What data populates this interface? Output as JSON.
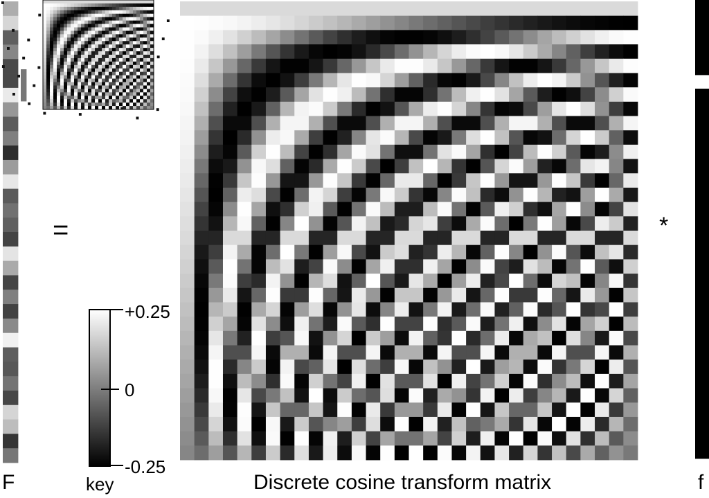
{
  "equation": {
    "left_label": "F",
    "equals": "=",
    "times": "*",
    "right_label": "f"
  },
  "matrix": {
    "title": "Discrete cosine transform matrix",
    "size": 32
  },
  "colorbar": {
    "label": "key",
    "ticks": [
      "+0.25",
      "0",
      "-0.25"
    ],
    "range": [
      -0.25,
      0.25
    ],
    "colormap": [
      "#000000",
      "#ffffff"
    ]
  },
  "colors": {
    "background": "#ffffff",
    "text": "#000000"
  }
}
